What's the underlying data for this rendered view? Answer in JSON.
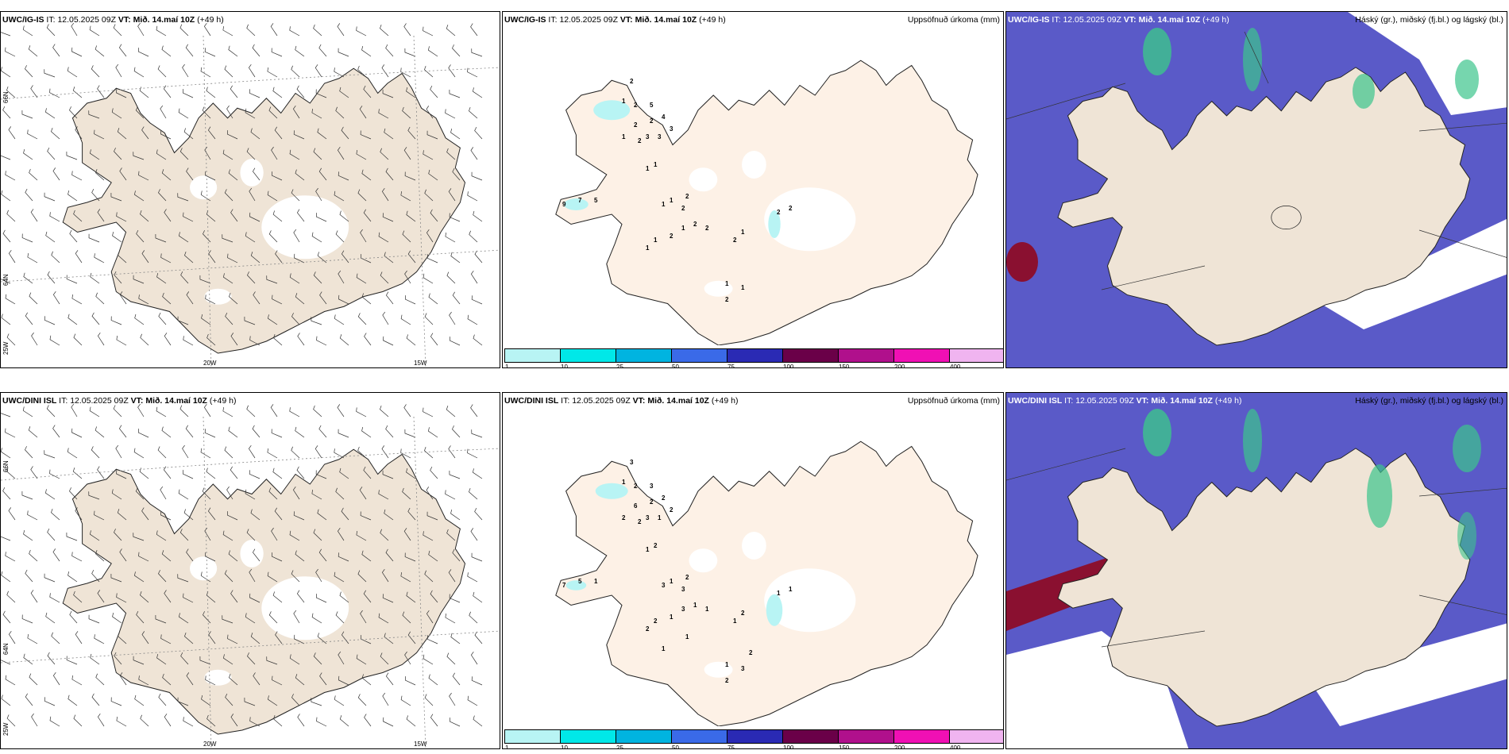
{
  "rows": [
    {
      "model": "UWC/IG-IS",
      "it_label": "IT:",
      "it_value": "12.05.2025 09Z",
      "vt_label": "VT:",
      "vt_value": "Mið. 14.maí 10Z",
      "lead": "(+49 h)"
    },
    {
      "model": "UWC/DINI ISL",
      "it_label": "IT:",
      "it_value": "12.05.2025 09Z",
      "vt_label": "VT:",
      "vt_value": "Mið. 14.maí 10Z",
      "lead": "(+49 h)"
    }
  ],
  "panel_titles": {
    "wind": "",
    "precip": "Uppsöfnuð úrkoma (mm)",
    "cloud": "Háský (gr.), miðský (fj.bl.) og lágský (bl.)"
  },
  "axis_labels": {
    "lat_66": "66N",
    "lat_64": "64N",
    "lon_25": "25W",
    "lon_20": "20W",
    "lon_15": "15W"
  },
  "colorbar": {
    "labels": [
      "1",
      "10",
      "25",
      "50",
      "75",
      "100",
      "150",
      "200",
      "400"
    ],
    "colors": [
      "#b8f4f4",
      "#00e8e8",
      "#00b4e0",
      "#3a6ae8",
      "#2a2ab4",
      "#6a0048",
      "#b0108c",
      "#f010b4",
      "#f0b4f0"
    ]
  },
  "precip_values_top": [
    "2",
    "1",
    "2",
    "5",
    "2",
    "4",
    "3",
    "2",
    "3",
    "3",
    "1",
    "2",
    "9",
    "7",
    "5",
    "1",
    "1",
    "1",
    "1",
    "2",
    "2",
    "1",
    "2",
    "2",
    "2",
    "1",
    "1",
    "2",
    "1",
    "2",
    "2",
    "1",
    "1",
    "2"
  ],
  "precip_values_bottom": [
    "3",
    "1",
    "2",
    "3",
    "2",
    "2",
    "2",
    "2",
    "3",
    "1",
    "2",
    "6",
    "7",
    "5",
    "1",
    "1",
    "2",
    "3",
    "1",
    "2",
    "3",
    "3",
    "1",
    "1",
    "1",
    "2",
    "2",
    "1",
    "2",
    "1",
    "1",
    "1",
    "3",
    "2",
    "2",
    "1",
    "1"
  ],
  "colors": {
    "land": "#efe4d6",
    "land_precip": "#fdf1e6",
    "glacier": "#ffffff",
    "precip_light": "#b8f4f4",
    "cloud_low": "#5a5ac8",
    "cloud_high": "#3cc48c",
    "cloud_mid": "#8a1030"
  },
  "icons": [
    "wind-barb-icon"
  ]
}
